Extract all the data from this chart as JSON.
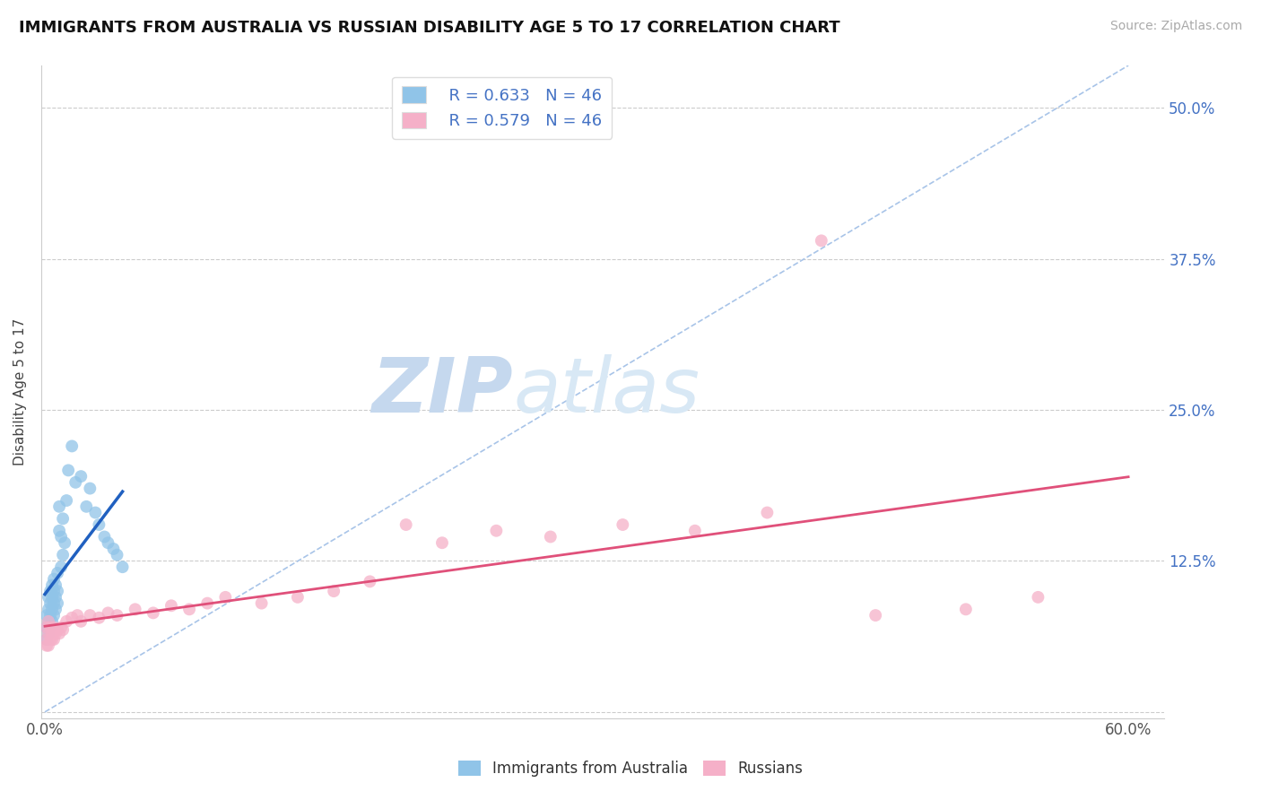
{
  "title": "IMMIGRANTS FROM AUSTRALIA VS RUSSIAN DISABILITY AGE 5 TO 17 CORRELATION CHART",
  "source": "Source: ZipAtlas.com",
  "ylabel": "Disability Age 5 to 17",
  "xlim": [
    -0.002,
    0.62
  ],
  "ylim": [
    -0.005,
    0.535
  ],
  "xtick_positions": [
    0.0,
    0.6
  ],
  "xticklabels": [
    "0.0%",
    "60.0%"
  ],
  "yticks": [
    0.0,
    0.125,
    0.25,
    0.375,
    0.5
  ],
  "yticklabels_right": [
    "",
    "12.5%",
    "25.0%",
    "37.5%",
    "50.0%"
  ],
  "blue_color": "#90c4e8",
  "pink_color": "#f5b0c8",
  "blue_line_color": "#2060c0",
  "pink_line_color": "#e0507a",
  "ref_line_color": "#a8c4e8",
  "watermark_color": "#dce8f5",
  "blue_x": [
    0.001,
    0.001,
    0.001,
    0.002,
    0.002,
    0.002,
    0.002,
    0.003,
    0.003,
    0.003,
    0.003,
    0.004,
    0.004,
    0.004,
    0.004,
    0.005,
    0.005,
    0.005,
    0.005,
    0.006,
    0.006,
    0.006,
    0.007,
    0.007,
    0.007,
    0.008,
    0.008,
    0.009,
    0.009,
    0.01,
    0.01,
    0.011,
    0.012,
    0.013,
    0.015,
    0.017,
    0.02,
    0.023,
    0.025,
    0.028,
    0.03,
    0.033,
    0.035,
    0.038,
    0.04,
    0.043
  ],
  "blue_y": [
    0.06,
    0.07,
    0.08,
    0.065,
    0.075,
    0.085,
    0.095,
    0.07,
    0.08,
    0.09,
    0.1,
    0.075,
    0.085,
    0.095,
    0.105,
    0.08,
    0.09,
    0.1,
    0.11,
    0.085,
    0.095,
    0.105,
    0.09,
    0.1,
    0.115,
    0.15,
    0.17,
    0.12,
    0.145,
    0.13,
    0.16,
    0.14,
    0.175,
    0.2,
    0.22,
    0.19,
    0.195,
    0.17,
    0.185,
    0.165,
    0.155,
    0.145,
    0.14,
    0.135,
    0.13,
    0.12
  ],
  "pink_x": [
    0.001,
    0.001,
    0.001,
    0.002,
    0.002,
    0.002,
    0.003,
    0.003,
    0.004,
    0.004,
    0.005,
    0.005,
    0.006,
    0.007,
    0.008,
    0.009,
    0.01,
    0.012,
    0.015,
    0.018,
    0.02,
    0.025,
    0.03,
    0.035,
    0.04,
    0.05,
    0.06,
    0.07,
    0.08,
    0.09,
    0.1,
    0.12,
    0.14,
    0.16,
    0.18,
    0.2,
    0.22,
    0.25,
    0.28,
    0.32,
    0.36,
    0.4,
    0.43,
    0.46,
    0.51,
    0.55
  ],
  "pink_y": [
    0.055,
    0.06,
    0.07,
    0.055,
    0.065,
    0.075,
    0.06,
    0.07,
    0.06,
    0.065,
    0.06,
    0.07,
    0.065,
    0.068,
    0.065,
    0.07,
    0.068,
    0.075,
    0.078,
    0.08,
    0.075,
    0.08,
    0.078,
    0.082,
    0.08,
    0.085,
    0.082,
    0.088,
    0.085,
    0.09,
    0.095,
    0.09,
    0.095,
    0.1,
    0.108,
    0.155,
    0.14,
    0.15,
    0.145,
    0.155,
    0.15,
    0.165,
    0.39,
    0.08,
    0.085,
    0.095
  ]
}
